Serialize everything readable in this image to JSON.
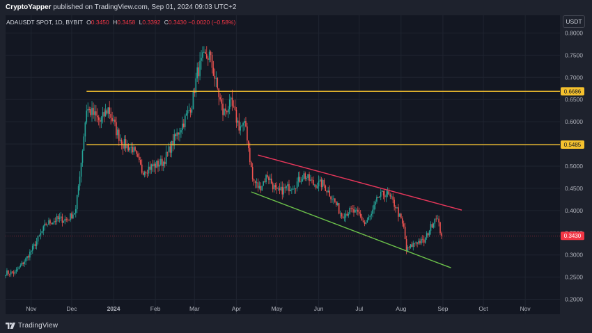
{
  "header": {
    "author": "CryptoYapper",
    "published_text": "published on TradingView.com, Sep 01, 2024 09:03 UTC+2"
  },
  "symbol": {
    "title": "ADAUSDT SPOT, 1D, BYBIT",
    "open_label": "O",
    "open": "0.3450",
    "high_label": "H",
    "high": "0.3458",
    "low_label": "L",
    "low": "0.3392",
    "close_label": "C",
    "close": "0.3430",
    "change": "−0.0020 (−0.58%)"
  },
  "currency_button": "USDT",
  "footer": {
    "brand": "TradingView"
  },
  "colors": {
    "background": "#1e222d",
    "up": "#26a69a",
    "down": "#ef5350",
    "resistance": "#f5c12e",
    "downtrend_upper": "#e8375b",
    "downtrend_lower": "#6cc24a",
    "price_line": "#f23645"
  },
  "chart_data": {
    "type": "candlestick",
    "ylim": [
      0.18,
      0.83
    ],
    "y_ticks": [
      "0.8000",
      "0.7500",
      "0.7000",
      "0.6500",
      "0.6000",
      "0.5500",
      "0.5000",
      "0.4500",
      "0.4000",
      "0.3500",
      "0.3000",
      "0.2500",
      "0.2000"
    ],
    "y_tick_values": [
      0.8,
      0.75,
      0.7,
      0.65,
      0.6,
      0.55,
      0.5,
      0.45,
      0.4,
      0.35,
      0.3,
      0.25,
      0.2
    ],
    "x_ticks": [
      {
        "label": "Nov",
        "date": "2023-11-01",
        "bold": false
      },
      {
        "label": "Dec",
        "date": "2023-12-01",
        "bold": false
      },
      {
        "label": "2024",
        "date": "2024-01-01",
        "bold": true
      },
      {
        "label": "Feb",
        "date": "2024-02-01",
        "bold": false
      },
      {
        "label": "Mar",
        "date": "2024-03-01",
        "bold": false
      },
      {
        "label": "Apr",
        "date": "2024-04-01",
        "bold": false
      },
      {
        "label": "May",
        "date": "2024-05-01",
        "bold": false
      },
      {
        "label": "Jun",
        "date": "2024-06-01",
        "bold": false
      },
      {
        "label": "Jul",
        "date": "2024-07-01",
        "bold": false
      },
      {
        "label": "Aug",
        "date": "2024-08-01",
        "bold": false
      },
      {
        "label": "Sep",
        "date": "2024-09-01",
        "bold": false
      },
      {
        "label": "Oct",
        "date": "2024-10-01",
        "bold": false
      },
      {
        "label": "Nov",
        "date": "2024-11-01",
        "bold": false
      }
    ],
    "x_range": [
      "2023-10-13",
      "2024-11-26"
    ],
    "price_anchors": [
      [
        "2023-10-13",
        0.26
      ],
      [
        "2023-10-20",
        0.26
      ],
      [
        "2023-10-28",
        0.29
      ],
      [
        "2023-11-05",
        0.33
      ],
      [
        "2023-11-12",
        0.37
      ],
      [
        "2023-11-20",
        0.38
      ],
      [
        "2023-11-28",
        0.38
      ],
      [
        "2023-12-04",
        0.4
      ],
      [
        "2023-12-08",
        0.51
      ],
      [
        "2023-12-12",
        0.63
      ],
      [
        "2023-12-16",
        0.62
      ],
      [
        "2023-12-22",
        0.6
      ],
      [
        "2023-12-28",
        0.63
      ],
      [
        "2024-01-03",
        0.58
      ],
      [
        "2024-01-08",
        0.55
      ],
      [
        "2024-01-15",
        0.54
      ],
      [
        "2024-01-22",
        0.49
      ],
      [
        "2024-01-30",
        0.5
      ],
      [
        "2024-02-07",
        0.51
      ],
      [
        "2024-02-15",
        0.56
      ],
      [
        "2024-02-22",
        0.6
      ],
      [
        "2024-02-28",
        0.64
      ],
      [
        "2024-03-03",
        0.71
      ],
      [
        "2024-03-07",
        0.74
      ],
      [
        "2024-03-12",
        0.75
      ],
      [
        "2024-03-16",
        0.7
      ],
      [
        "2024-03-22",
        0.62
      ],
      [
        "2024-03-28",
        0.64
      ],
      [
        "2024-04-03",
        0.59
      ],
      [
        "2024-04-08",
        0.59
      ],
      [
        "2024-04-13",
        0.47
      ],
      [
        "2024-04-18",
        0.45
      ],
      [
        "2024-04-24",
        0.48
      ],
      [
        "2024-05-01",
        0.44
      ],
      [
        "2024-05-08",
        0.45
      ],
      [
        "2024-05-15",
        0.46
      ],
      [
        "2024-05-21",
        0.48
      ],
      [
        "2024-05-28",
        0.46
      ],
      [
        "2024-06-04",
        0.46
      ],
      [
        "2024-06-11",
        0.43
      ],
      [
        "2024-06-18",
        0.39
      ],
      [
        "2024-06-25",
        0.4
      ],
      [
        "2024-07-01",
        0.39
      ],
      [
        "2024-07-05",
        0.37
      ],
      [
        "2024-07-10",
        0.39
      ],
      [
        "2024-07-15",
        0.43
      ],
      [
        "2024-07-21",
        0.44
      ],
      [
        "2024-07-28",
        0.41
      ],
      [
        "2024-08-03",
        0.36
      ],
      [
        "2024-08-05",
        0.31
      ],
      [
        "2024-08-12",
        0.33
      ],
      [
        "2024-08-18",
        0.33
      ],
      [
        "2024-08-24",
        0.37
      ],
      [
        "2024-08-27",
        0.39
      ],
      [
        "2024-08-31",
        0.343
      ]
    ],
    "horizontal_levels": [
      {
        "value": 0.6686,
        "label": "0.6686",
        "start_date": "2023-12-12"
      },
      {
        "value": 0.5485,
        "label": "0.5485",
        "start_date": "2023-12-12"
      }
    ],
    "trendlines": [
      {
        "role": "upper",
        "from": [
          "2024-04-17",
          0.525
        ],
        "to": [
          "2024-09-15",
          0.401
        ]
      },
      {
        "role": "lower",
        "from": [
          "2024-04-12",
          0.442
        ],
        "to": [
          "2024-09-07",
          0.271
        ]
      }
    ],
    "last_price": {
      "value": 0.343,
      "label": "0.3430"
    }
  }
}
